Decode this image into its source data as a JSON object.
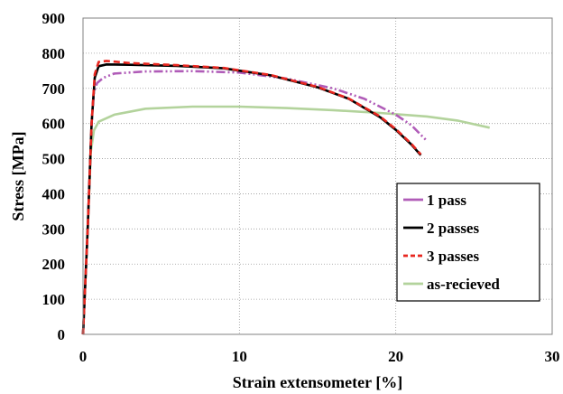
{
  "chart_data": {
    "type": "line",
    "xlabel": "Strain extensometer [%]",
    "ylabel": "Stress [MPa]",
    "xlim": [
      0,
      30
    ],
    "ylim": [
      0,
      900
    ],
    "xticks": [
      "0",
      "10",
      "20",
      "30"
    ],
    "yticks": [
      "0",
      "100",
      "200",
      "300",
      "400",
      "500",
      "600",
      "700",
      "800",
      "900"
    ],
    "grid": true,
    "legend_position": "lower-right",
    "series": [
      {
        "name": "1 pass",
        "color": "#b05cb8",
        "dash": "dash-dot-dot",
        "points": [
          [
            0,
            0
          ],
          [
            0.3,
            300
          ],
          [
            0.55,
            600
          ],
          [
            0.7,
            690
          ],
          [
            0.9,
            715
          ],
          [
            1.3,
            730
          ],
          [
            2,
            742
          ],
          [
            4,
            748
          ],
          [
            7,
            749
          ],
          [
            10,
            745
          ],
          [
            13,
            728
          ],
          [
            16,
            700
          ],
          [
            18,
            670
          ],
          [
            20,
            625
          ],
          [
            21,
            595
          ],
          [
            22,
            550
          ]
        ]
      },
      {
        "name": "2 passes",
        "color": "#000000",
        "dash": "solid",
        "points": [
          [
            0,
            0
          ],
          [
            0.3,
            300
          ],
          [
            0.55,
            600
          ],
          [
            0.75,
            730
          ],
          [
            1,
            763
          ],
          [
            1.5,
            768
          ],
          [
            3,
            767
          ],
          [
            6,
            764
          ],
          [
            9,
            757
          ],
          [
            12,
            737
          ],
          [
            15,
            703
          ],
          [
            17,
            670
          ],
          [
            19,
            618
          ],
          [
            20,
            582
          ],
          [
            21,
            540
          ],
          [
            21.6,
            510
          ]
        ]
      },
      {
        "name": "3 passes",
        "color": "#e8261f",
        "dash": "dashed",
        "points": [
          [
            0,
            0
          ],
          [
            0.3,
            300
          ],
          [
            0.55,
            600
          ],
          [
            0.75,
            740
          ],
          [
            1,
            775
          ],
          [
            1.5,
            778
          ],
          [
            3,
            772
          ],
          [
            6,
            766
          ],
          [
            9,
            758
          ],
          [
            12,
            738
          ],
          [
            15,
            704
          ],
          [
            17,
            671
          ],
          [
            19,
            620
          ],
          [
            20,
            584
          ],
          [
            21,
            542
          ],
          [
            21.6,
            512
          ]
        ]
      },
      {
        "name": "as-recieved",
        "color": "#b3d39c",
        "dash": "solid",
        "points": [
          [
            0,
            0
          ],
          [
            0.3,
            300
          ],
          [
            0.5,
            520
          ],
          [
            0.7,
            580
          ],
          [
            1,
            605
          ],
          [
            2,
            625
          ],
          [
            4,
            642
          ],
          [
            7,
            648
          ],
          [
            10,
            648
          ],
          [
            13,
            644
          ],
          [
            16,
            638
          ],
          [
            19,
            630
          ],
          [
            22,
            620
          ],
          [
            24,
            608
          ],
          [
            26,
            588
          ]
        ]
      }
    ]
  }
}
